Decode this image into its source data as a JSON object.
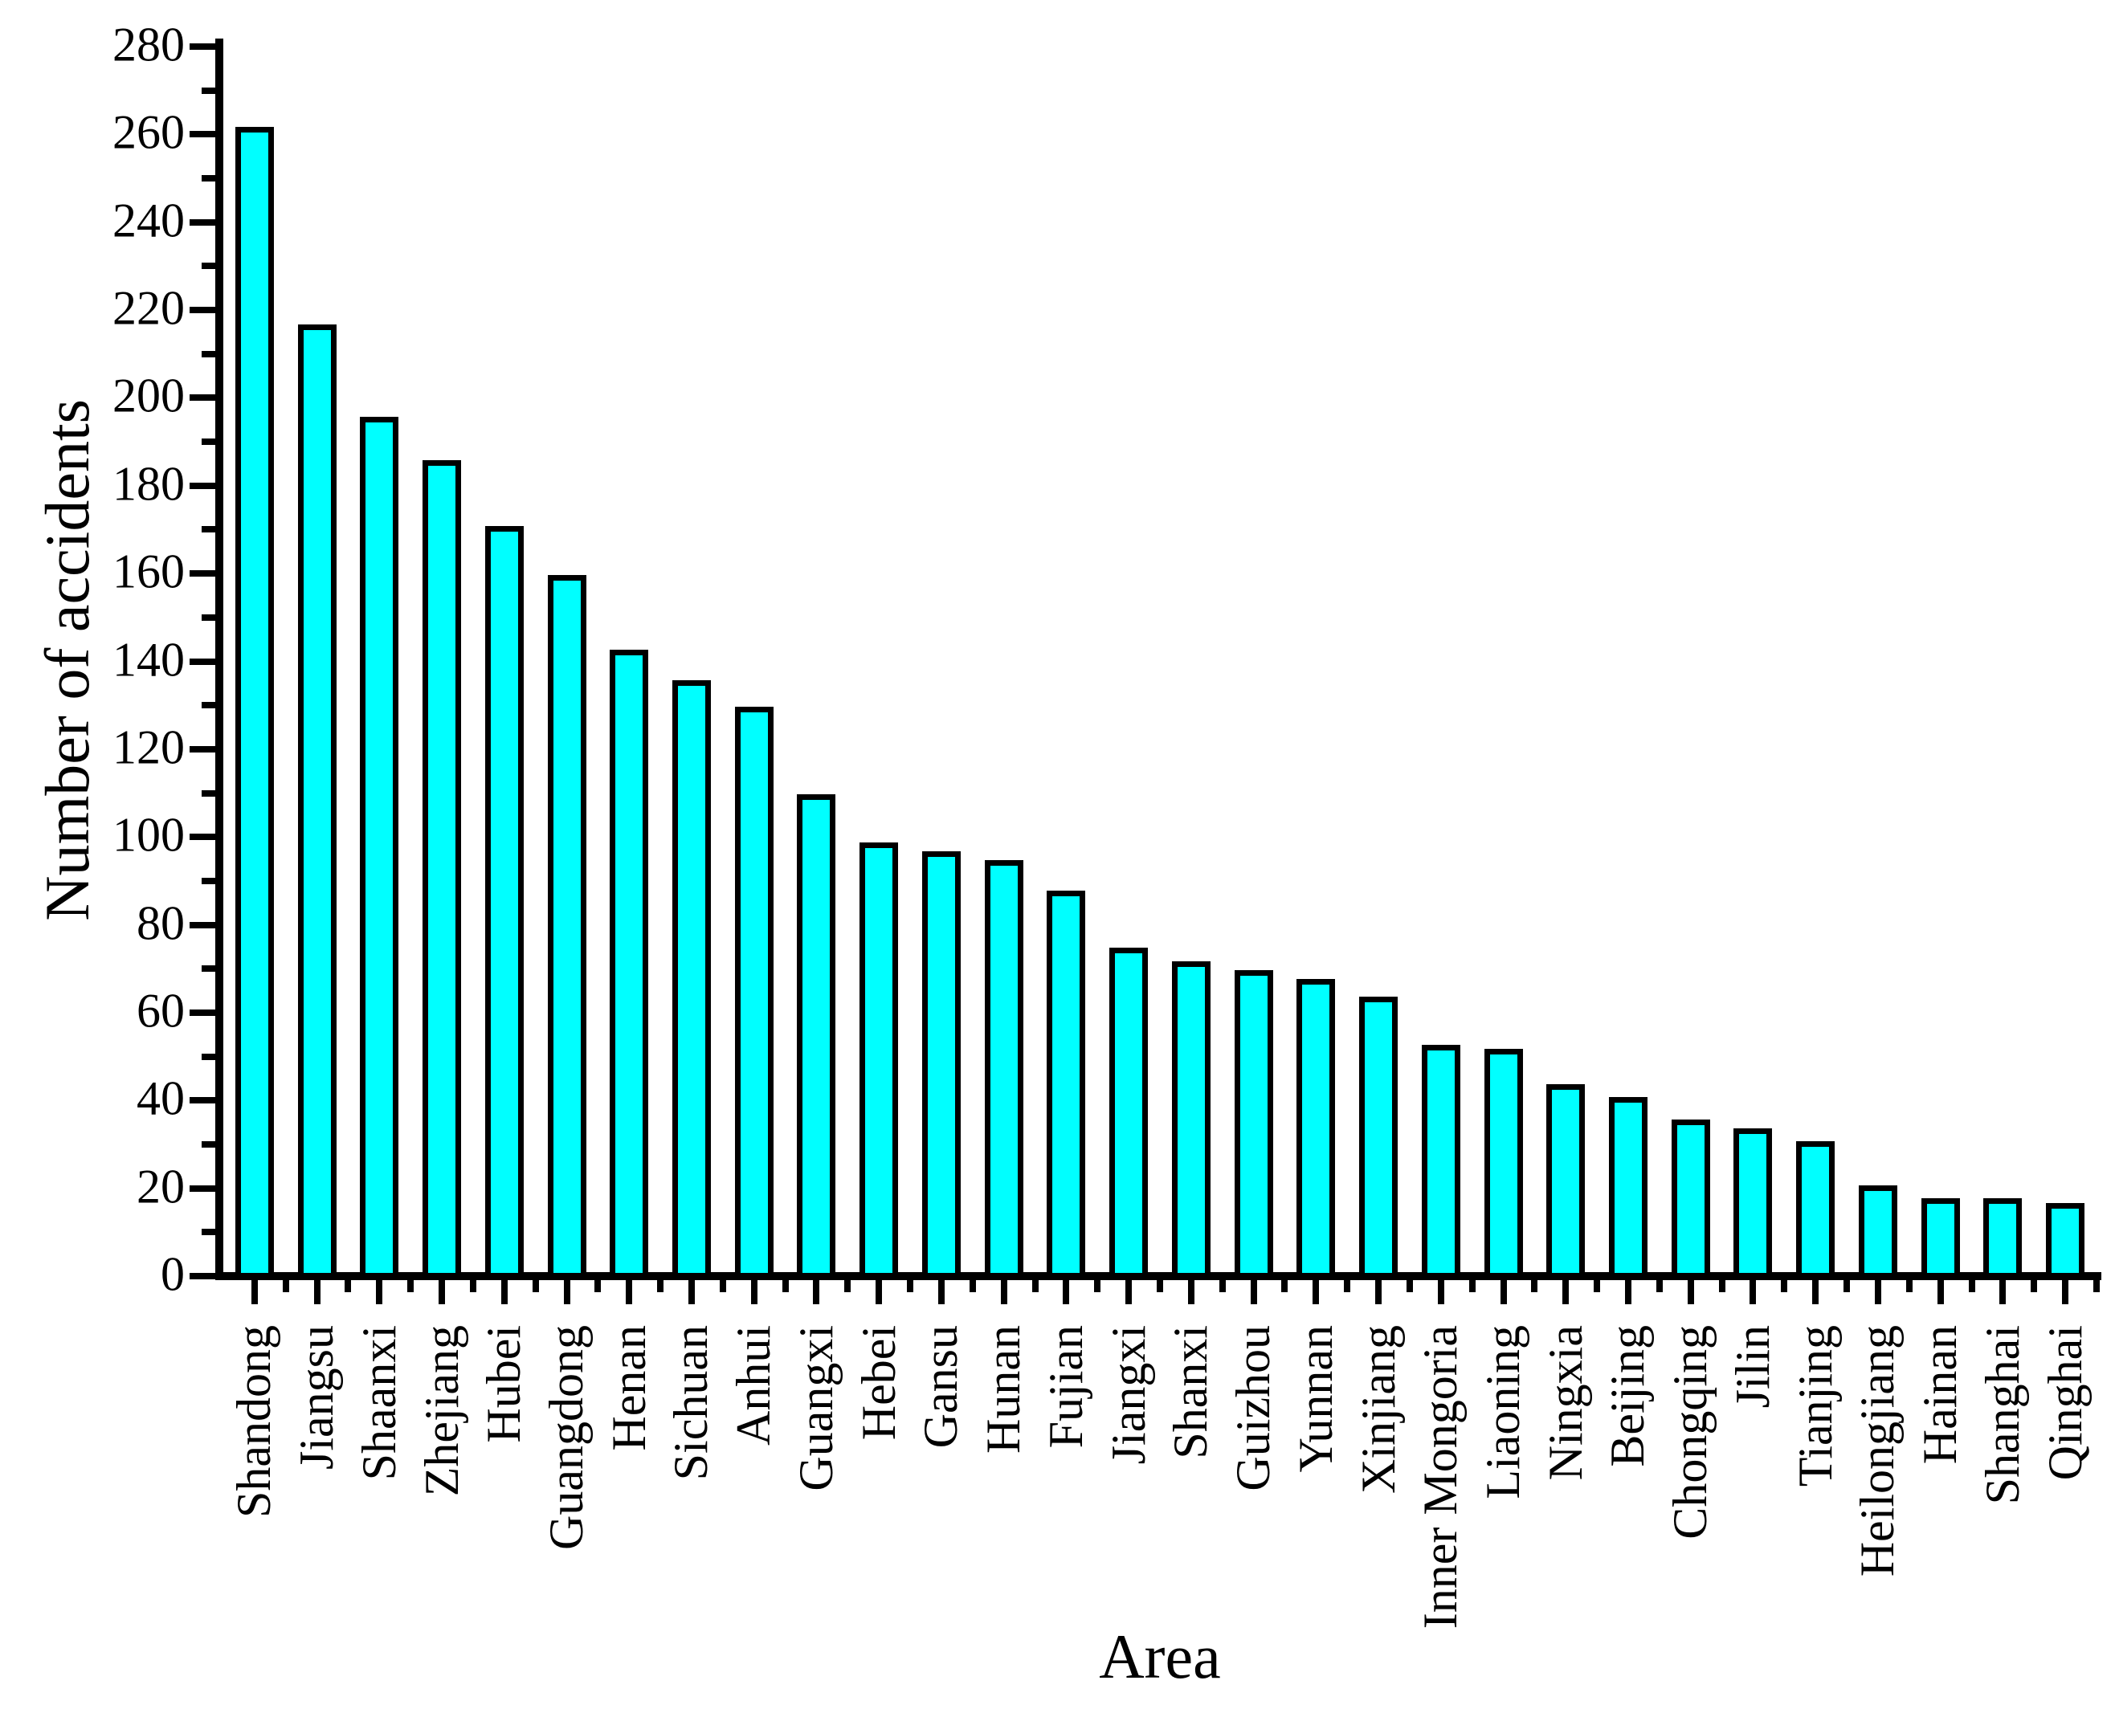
{
  "chart_data": {
    "type": "bar",
    "title": "",
    "xlabel": "Area",
    "ylabel": "Number of accidents",
    "ylim": [
      0,
      280
    ],
    "yticks": [
      0,
      20,
      40,
      60,
      80,
      100,
      120,
      140,
      160,
      180,
      200,
      220,
      240,
      260,
      280
    ],
    "ytick_minor_step": 10,
    "grid": false,
    "legend": "none",
    "bar_color": "#00ffff",
    "bar_edge_color": "#000000",
    "categories": [
      "Shandong",
      "Jiangsu",
      "Shaanxi",
      "Zhejiang",
      "Hubei",
      "Guangdong",
      "Henan",
      "Sichuan",
      "Anhui",
      "Guangxi",
      "Hebei",
      "Gansu",
      "Hunan",
      "Fujian",
      "Jiangxi",
      "Shanxi",
      "Guizhou",
      "Yunnan",
      "Xinjiang",
      "Inner Mongoria",
      "Liaoning",
      "Ningxia",
      "Beijing",
      "Chongqing",
      "Jilin",
      "Tianjing",
      "Heilongjiang",
      "Hainan",
      "Shanghai",
      "Qinghai"
    ],
    "values": [
      261,
      216,
      195,
      185,
      170,
      159,
      142,
      135,
      129,
      109,
      98,
      96,
      94,
      87,
      74,
      71,
      69,
      67,
      63,
      52,
      51,
      43,
      40,
      35,
      33,
      30,
      20,
      17,
      17,
      16
    ]
  }
}
